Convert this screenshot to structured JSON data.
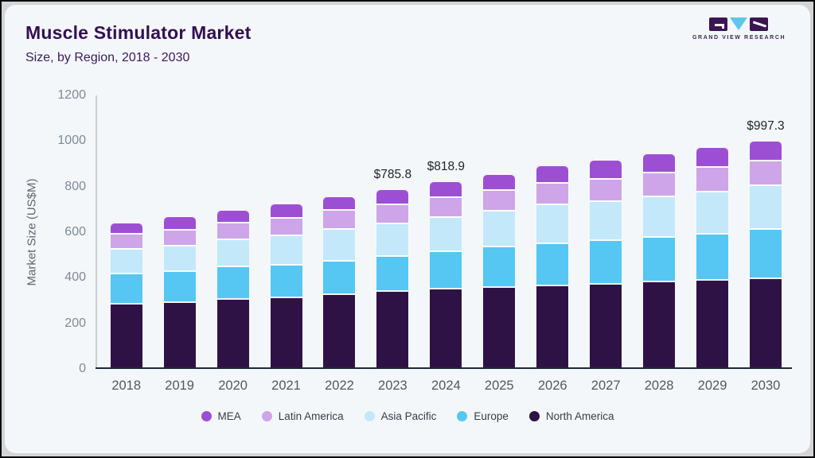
{
  "header": {
    "title": "Muscle Stimulator Market",
    "subtitle": "Size, by Region, 2018 - 2030"
  },
  "logo": {
    "text": "GRAND VIEW RESEARCH",
    "mark_dark_color": "#3a1653",
    "mark_triangle_color": "#5ec6ea"
  },
  "chart_data": {
    "type": "bar",
    "stacked": true,
    "title": "Muscle Stimulator Market",
    "subtitle": "Size, by Region, 2018 - 2030",
    "ylabel": "Market Size (US$M)",
    "ylim": [
      0,
      1200
    ],
    "yticks": [
      0,
      200,
      400,
      600,
      800,
      1000,
      1200
    ],
    "grid": false,
    "legend_position": "bottom",
    "categories": [
      "2018",
      "2019",
      "2020",
      "2021",
      "2022",
      "2023",
      "2024",
      "2025",
      "2026",
      "2027",
      "2028",
      "2029",
      "2030"
    ],
    "stack_order_bottom_to_top": [
      "North America",
      "Europe",
      "Asia Pacific",
      "Latin America",
      "MEA"
    ],
    "legend_order": [
      "MEA",
      "Latin America",
      "Asia Pacific",
      "Europe",
      "North America"
    ],
    "series": [
      {
        "name": "North America",
        "color": "#2f1245",
        "values": [
          281,
          290,
          303,
          312,
          326,
          336.7,
          348.5,
          356,
          364,
          370,
          379,
          388,
          395.5
        ]
      },
      {
        "name": "Europe",
        "color": "#55c7f2",
        "values": [
          134,
          135,
          143,
          143,
          146,
          154.2,
          165.2,
          177,
          184,
          192,
          196,
          201,
          214
        ]
      },
      {
        "name": "Asia Pacific",
        "color": "#c3e8f9",
        "values": [
          109,
          113,
          119,
          127,
          137,
          144.1,
          150.9,
          157,
          169,
          170,
          178,
          186,
          191.6
        ]
      },
      {
        "name": "Latin America",
        "color": "#cda5e8",
        "values": [
          67,
          70,
          73,
          76,
          84,
          84.6,
          87.1,
          90,
          96,
          98,
          104,
          106,
          108.8
        ]
      },
      {
        "name": "MEA",
        "color": "#9d4fd4",
        "values": [
          48,
          57,
          57,
          63,
          61,
          66.2,
          67.2,
          72,
          76,
          84,
          85,
          89,
          87.4
        ]
      }
    ],
    "totals": [
      639,
      665,
      695,
      721,
      754,
      785.8,
      818.9,
      852,
      889,
      914,
      942,
      970,
      997.3
    ],
    "bar_value_labels": [
      {
        "category": "2023",
        "label": "$785.8"
      },
      {
        "category": "2024",
        "label": "$818.9"
      },
      {
        "category": "2030",
        "label": "$997.3"
      }
    ]
  }
}
